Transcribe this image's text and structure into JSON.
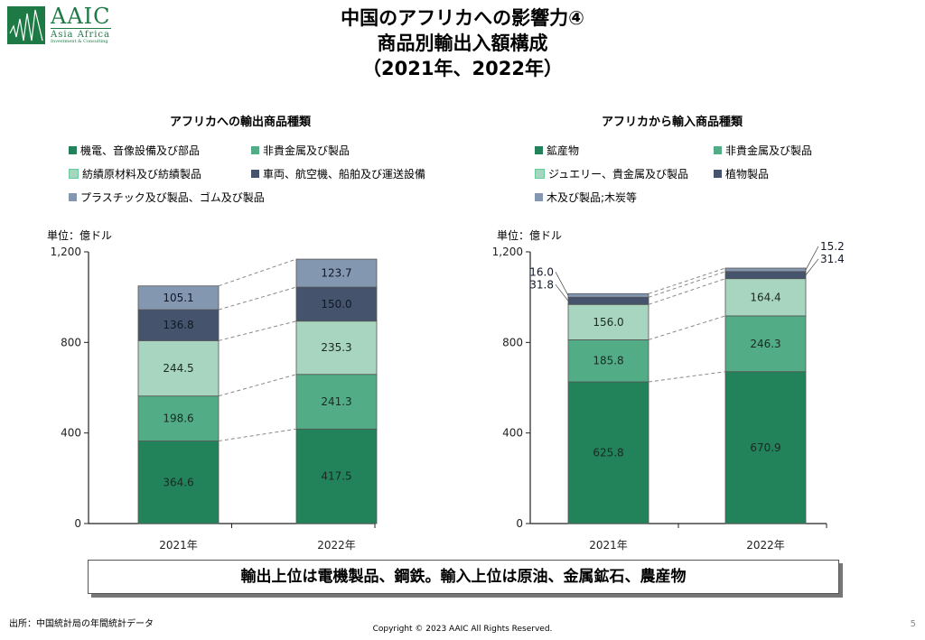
{
  "logo": {
    "main": "AAIC",
    "sub": "Asia Africa",
    "sub2": "Investment & Consulting"
  },
  "title": {
    "line1": "中国のアフリカへの影響力④",
    "line2": "商品別輸出入額構成",
    "line3": "（2021年、2022年）"
  },
  "colors": {
    "c1": "#22835a",
    "c2": "#52ad86",
    "c3": "#a8d5bf",
    "c4": "#45546c",
    "c5": "#8497b0"
  },
  "chart_data": [
    {
      "type": "bar",
      "stacked": true,
      "title": "アフリカへの輸出商品種類",
      "unit_label": "単位：億ドル",
      "categories": [
        "2021年",
        "2022年"
      ],
      "ylim": [
        0,
        1200
      ],
      "yticks": [
        "0",
        "400",
        "800",
        "1,200"
      ],
      "ytick_values": [
        0,
        400,
        800,
        1200
      ],
      "legend_placement": "top",
      "series": [
        {
          "name": "機電、音像設備及び部品",
          "values": [
            364.6,
            417.5
          ],
          "labels": [
            "364.6",
            "417.5"
          ]
        },
        {
          "name": "非貴金属及び製品",
          "values": [
            198.6,
            241.3
          ],
          "labels": [
            "198.6",
            "241.3"
          ]
        },
        {
          "name": "紡績原材料及び紡績製品",
          "values": [
            244.5,
            235.3
          ],
          "labels": [
            "244.5",
            "235.3"
          ]
        },
        {
          "name": "車両、航空機、船舶及び運送設備",
          "values": [
            136.8,
            150.0
          ],
          "labels": [
            "136.8",
            "150.0"
          ]
        },
        {
          "name": "プラスチック及び製品、ゴム及び製品",
          "values": [
            105.1,
            123.7
          ],
          "labels": [
            "105.1",
            "123.7"
          ]
        }
      ]
    },
    {
      "type": "bar",
      "stacked": true,
      "title": "アフリカから輸入商品種類",
      "unit_label": "単位：億ドル",
      "categories": [
        "2021年",
        "2022年"
      ],
      "ylim": [
        0,
        1200
      ],
      "yticks": [
        "0",
        "400",
        "800",
        "1,200"
      ],
      "ytick_values": [
        0,
        400,
        800,
        1200
      ],
      "legend_placement": "top",
      "series": [
        {
          "name": "鉱産物",
          "values": [
            625.8,
            670.9
          ],
          "labels": [
            "625.8",
            "670.9"
          ]
        },
        {
          "name": "非貴金属及び製品",
          "values": [
            185.8,
            246.3
          ],
          "labels": [
            "185.8",
            "246.3"
          ]
        },
        {
          "name": "ジュエリー、貴金属及び製品",
          "values": [
            156.0,
            164.4
          ],
          "labels": [
            "156.0",
            "164.4"
          ]
        },
        {
          "name": "植物製品",
          "values": [
            31.8,
            31.4
          ],
          "labels": [
            "31.8",
            "31.4"
          ]
        },
        {
          "name": "木及び製品;木炭等",
          "values": [
            16.0,
            15.2
          ],
          "labels": [
            "16.0",
            "15.2"
          ]
        }
      ]
    }
  ],
  "summary": "輸出上位は電機製品、鋼鉄。輸入上位は原油、金属鉱石、農産物",
  "footer": {
    "source": "出所：中国統計局の年間統計データ",
    "copyright": "Copyright © 2023 AAIC All Rights Reserved.",
    "page": "5"
  }
}
